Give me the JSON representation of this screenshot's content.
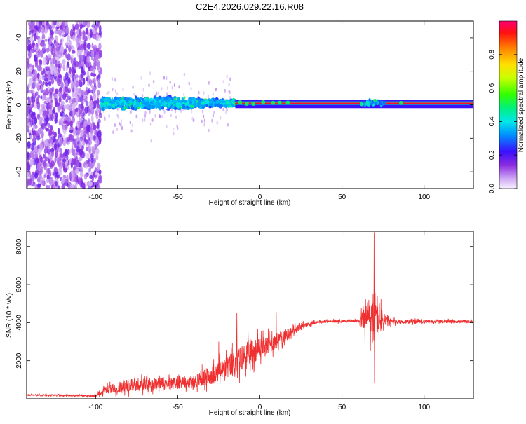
{
  "title": "C2E4.2026.029.22.16.R08",
  "chart_data": [
    {
      "type": "heatmap",
      "xlabel": "Height of straight line (km)",
      "ylabel": "Frequency (Hz)",
      "xlim": [
        -142,
        130
      ],
      "ylim": [
        -50,
        50
      ],
      "x_ticks": [
        -100,
        -50,
        0,
        50,
        100
      ],
      "y_ticks": [
        -40,
        -20,
        0,
        20,
        40
      ],
      "colorbar": {
        "label": "Normalized spectral amplitude",
        "range": [
          0,
          1
        ],
        "ticks": [
          "0.0",
          "0.2",
          "0.4",
          "0.6",
          "0.8"
        ],
        "tick_values": [
          0.0,
          0.2,
          0.4,
          0.6,
          0.8
        ]
      },
      "regions": [
        {
          "x_range": [
            -142,
            -97
          ],
          "freq_range": [
            -50,
            50
          ],
          "amplitude": 0.1,
          "description": "broadband noise"
        },
        {
          "x_range": [
            -97,
            -40
          ],
          "freq_range": [
            -5,
            7
          ],
          "amplitude": 0.35
        },
        {
          "x_range": [
            -40,
            -15
          ],
          "freq_range": [
            -3,
            5
          ],
          "amplitude": 0.45
        },
        {
          "x_range": [
            -15,
            130
          ],
          "freq_range": [
            0,
            1
          ],
          "amplitude": 0.95,
          "description": "carrier line"
        }
      ]
    },
    {
      "type": "line",
      "xlabel": "Height of straight line (km)",
      "ylabel": "SNR (10 * v/v)",
      "xlim": [
        -142,
        130
      ],
      "ylim": [
        0,
        8800
      ],
      "x_ticks": [
        -100,
        -50,
        0,
        50,
        100
      ],
      "y_ticks": [
        2000,
        4000,
        6000,
        8000
      ],
      "line_color": "#f03030",
      "envelope": [
        {
          "x": -142,
          "mean": 200,
          "spread": 60
        },
        {
          "x": -100,
          "mean": 150,
          "spread": 80
        },
        {
          "x": -95,
          "mean": 450,
          "spread": 350
        },
        {
          "x": -80,
          "mean": 700,
          "spread": 600
        },
        {
          "x": -60,
          "mean": 800,
          "spread": 600
        },
        {
          "x": -40,
          "mean": 900,
          "spread": 650
        },
        {
          "x": -25,
          "mean": 1400,
          "spread": 1000
        },
        {
          "x": -15,
          "mean": 1900,
          "spread": 1300
        },
        {
          "x": -5,
          "mean": 2500,
          "spread": 1200
        },
        {
          "x": 5,
          "mean": 2800,
          "spread": 900
        },
        {
          "x": 15,
          "mean": 3300,
          "spread": 600
        },
        {
          "x": 25,
          "mean": 3800,
          "spread": 250
        },
        {
          "x": 35,
          "mean": 4050,
          "spread": 150
        },
        {
          "x": 60,
          "mean": 4100,
          "spread": 120
        },
        {
          "x": 64,
          "mean": 4200,
          "spread": 1400
        },
        {
          "x": 70,
          "mean": 4300,
          "spread": 3000
        },
        {
          "x": 74,
          "mean": 4100,
          "spread": 1200
        },
        {
          "x": 80,
          "mean": 4050,
          "spread": 250
        },
        {
          "x": 100,
          "mean": 4050,
          "spread": 150
        },
        {
          "x": 130,
          "mean": 4050,
          "spread": 130
        }
      ],
      "peaks": [
        {
          "x": 69.5,
          "y": 8750
        },
        {
          "x": 69.8,
          "y": 800
        },
        {
          "x": -14,
          "y": 4500
        },
        {
          "x": 10,
          "y": 4550
        },
        {
          "x": -25,
          "y": 3000
        }
      ]
    }
  ]
}
